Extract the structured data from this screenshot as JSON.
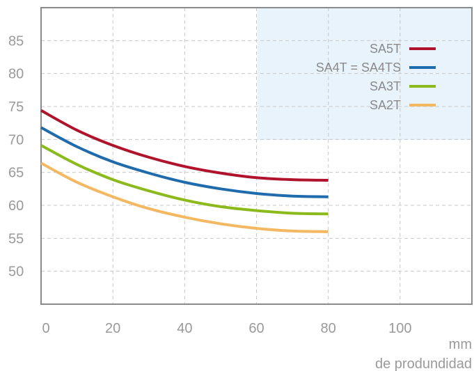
{
  "chart_data": {
    "type": "line",
    "title": "",
    "xlabel": [
      "mm",
      "de produndidad"
    ],
    "ylabel": "",
    "xlim": [
      0,
      120
    ],
    "ylim": [
      45,
      90
    ],
    "xticks": [
      "0",
      "20",
      "40",
      "60",
      "80",
      "100"
    ],
    "xtick_values": [
      0,
      20,
      40,
      60,
      80,
      100
    ],
    "yticks": [
      "85",
      "80",
      "75",
      "70",
      "65",
      "60",
      "55",
      "50"
    ],
    "ytick_values": [
      85,
      80,
      75,
      70,
      65,
      60,
      55,
      50
    ],
    "grid": true,
    "legend_position": "top-right",
    "legend_background": "#e8f3fb",
    "series": [
      {
        "name": "SA5T",
        "color": "#b0142c",
        "x": [
          0,
          10,
          20,
          30,
          40,
          50,
          60,
          70,
          80
        ],
        "y": [
          74.4,
          71.4,
          69.1,
          67.3,
          65.9,
          64.9,
          64.2,
          63.9,
          63.8
        ]
      },
      {
        "name": "SA4T = SA4TS",
        "color": "#1f6bac",
        "x": [
          0,
          10,
          20,
          30,
          40,
          50,
          60,
          70,
          80
        ],
        "y": [
          71.8,
          68.9,
          66.6,
          64.9,
          63.5,
          62.5,
          61.8,
          61.4,
          61.3
        ]
      },
      {
        "name": "SA3T",
        "color": "#8cba1c",
        "x": [
          0,
          10,
          20,
          30,
          40,
          50,
          60,
          70,
          80
        ],
        "y": [
          69.1,
          66.2,
          63.9,
          62.2,
          60.8,
          59.8,
          59.2,
          58.8,
          58.7
        ]
      },
      {
        "name": "SA2T",
        "color": "#f5b862",
        "x": [
          0,
          10,
          20,
          30,
          40,
          50,
          60,
          70,
          80
        ],
        "y": [
          66.4,
          63.5,
          61.3,
          59.5,
          58.2,
          57.2,
          56.5,
          56.1,
          56.0
        ]
      }
    ]
  }
}
